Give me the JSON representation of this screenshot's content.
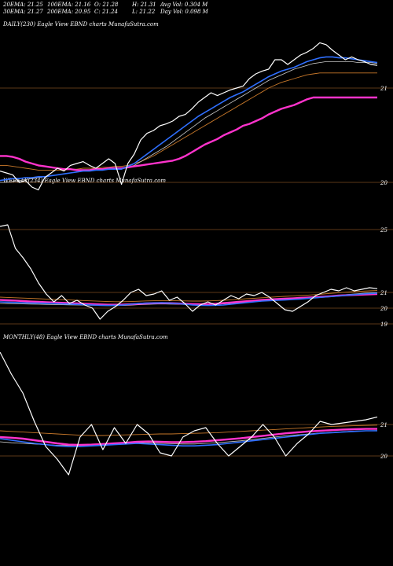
{
  "header": {
    "row1": [
      "20EMA: 21.25",
      "100EMA: 21.16",
      "O: 21.28",
      "H: 21.31",
      "Avg Vol: 0.304  M"
    ],
    "row2": [
      "30EMA: 21.27",
      "200EMA: 20.95",
      "C: 21.24",
      "L: 21.22",
      "Day Vol: 0.098  M"
    ]
  },
  "panels": {
    "daily": {
      "label": "DAILY(230) Eagle   View  EBND charts MunafaSutra.com"
    },
    "weekly": {
      "label": "WEEKLY(234) Eagle   View  EBND charts MunafaSutra.com"
    },
    "monthly": {
      "label": "MONTHLY(48) Eagle   View  EBND charts MunafaSutra.com"
    }
  },
  "colors": {
    "background": "#000000",
    "price": "#ffffff",
    "ema_blue": "#2f6fff",
    "ema_pink": "#ff33cc",
    "ema_orange": "#c8782a",
    "ema_gray": "#cccccc",
    "grid": "#b87333"
  },
  "chart_data": [
    {
      "type": "line",
      "title": "DAILY(230) Eagle   View  EBND charts MunafaSutra.com",
      "ylim": [
        19.6,
        21.6
      ],
      "yticks": [
        21,
        20
      ],
      "series": [
        {
          "role": "price",
          "values": [
            20.12,
            20.1,
            20.08,
            20.0,
            20.02,
            19.95,
            19.92,
            20.05,
            20.1,
            20.15,
            20.12,
            20.18,
            20.2,
            20.22,
            20.18,
            20.15,
            20.2,
            20.25,
            20.2,
            19.98,
            20.2,
            20.3,
            20.45,
            20.52,
            20.55,
            20.6,
            20.62,
            20.65,
            20.7,
            20.72,
            20.78,
            20.85,
            20.9,
            20.95,
            20.92,
            20.95,
            20.98,
            21.0,
            21.02,
            21.1,
            21.15,
            21.18,
            21.2,
            21.3,
            21.3,
            21.25,
            21.3,
            21.35,
            21.38,
            21.42,
            21.48,
            21.46,
            21.4,
            21.35,
            21.3,
            21.33,
            21.3,
            21.28,
            21.25,
            21.24
          ]
        },
        {
          "role": "ema_blue",
          "values": [
            20.02,
            20.03,
            20.04,
            20.04,
            20.05,
            20.05,
            20.06,
            20.06,
            20.07,
            20.08,
            20.09,
            20.1,
            20.11,
            20.12,
            20.12,
            20.13,
            20.13,
            20.14,
            20.14,
            20.14,
            20.17,
            20.2,
            20.25,
            20.3,
            20.35,
            20.4,
            20.45,
            20.5,
            20.55,
            20.6,
            20.65,
            20.7,
            20.74,
            20.78,
            20.82,
            20.86,
            20.9,
            20.93,
            20.96,
            21.0,
            21.04,
            21.08,
            21.12,
            21.15,
            21.18,
            21.2,
            21.22,
            21.25,
            21.28,
            21.3,
            21.32,
            21.33,
            21.33,
            21.32,
            21.32,
            21.31,
            21.3,
            21.29,
            21.28,
            21.27
          ]
        },
        {
          "role": "ema_pink",
          "values": [
            20.28,
            20.28,
            20.27,
            20.25,
            20.22,
            20.2,
            20.18,
            20.17,
            20.16,
            20.15,
            20.14,
            20.14,
            20.13,
            20.13,
            20.13,
            20.14,
            20.14,
            20.15,
            20.15,
            20.15,
            20.16,
            20.17,
            20.18,
            20.19,
            20.2,
            20.21,
            20.22,
            20.23,
            20.25,
            20.28,
            20.32,
            20.36,
            20.4,
            20.43,
            20.46,
            20.5,
            20.53,
            20.56,
            20.6,
            20.62,
            20.65,
            20.68,
            20.72,
            20.75,
            20.78,
            20.8,
            20.82,
            20.85,
            20.88,
            20.9,
            20.9,
            20.9,
            20.9,
            20.9,
            20.9,
            20.9,
            20.9,
            20.9,
            20.9,
            20.9
          ]
        },
        {
          "role": "ema_orange",
          "values": [
            20.18,
            20.18,
            20.17,
            20.16,
            20.15,
            20.14,
            20.13,
            20.13,
            20.13,
            20.13,
            20.13,
            20.14,
            20.14,
            20.15,
            20.15,
            20.15,
            20.16,
            20.16,
            20.17,
            20.17,
            20.18,
            20.2,
            20.22,
            20.25,
            20.28,
            20.32,
            20.36,
            20.4,
            20.44,
            20.48,
            20.52,
            20.56,
            20.6,
            20.64,
            20.68,
            20.72,
            20.76,
            20.8,
            20.84,
            20.88,
            20.92,
            20.96,
            21.0,
            21.03,
            21.06,
            21.08,
            21.1,
            21.12,
            21.14,
            21.15,
            21.16,
            21.16,
            21.16,
            21.16,
            21.16,
            21.16,
            21.16,
            21.16,
            21.16,
            21.16
          ]
        },
        {
          "role": "ema_gray",
          "values": [
            20.0,
            20.0,
            20.01,
            20.02,
            20.03,
            20.04,
            20.05,
            20.06,
            20.07,
            20.08,
            20.09,
            20.1,
            20.11,
            20.12,
            20.12,
            20.13,
            20.13,
            20.14,
            20.14,
            20.14,
            20.16,
            20.18,
            20.22,
            20.26,
            20.3,
            20.34,
            20.38,
            20.43,
            20.48,
            20.53,
            20.58,
            20.63,
            20.68,
            20.72,
            20.76,
            20.8,
            20.84,
            20.88,
            20.92,
            20.96,
            21.0,
            21.04,
            21.08,
            21.11,
            21.14,
            21.17,
            21.2,
            21.22,
            21.24,
            21.26,
            21.27,
            21.28,
            21.28,
            21.28,
            21.28,
            21.28,
            21.27,
            21.27,
            21.27,
            21.26
          ]
        }
      ]
    },
    {
      "type": "line",
      "title": "WEEKLY(234) Eagle   View  EBND charts MunafaSutra.com",
      "ylim": [
        18.6,
        25.6
      ],
      "yticks": [
        25,
        21,
        20,
        19
      ],
      "series": [
        {
          "role": "price",
          "values": [
            25.2,
            25.3,
            23.8,
            23.2,
            22.5,
            21.6,
            20.9,
            20.4,
            20.8,
            20.3,
            20.5,
            20.2,
            20.0,
            19.3,
            19.8,
            20.1,
            20.5,
            21.0,
            21.2,
            20.8,
            20.9,
            21.1,
            20.5,
            20.7,
            20.3,
            19.8,
            20.2,
            20.4,
            20.2,
            20.5,
            20.8,
            20.6,
            20.9,
            20.8,
            21.0,
            20.7,
            20.3,
            19.9,
            19.8,
            20.1,
            20.4,
            20.8,
            21.0,
            21.2,
            21.1,
            21.3,
            21.1,
            21.2,
            21.3,
            21.24
          ]
        },
        {
          "role": "ema_blue",
          "values": [
            20.4,
            20.38,
            20.36,
            20.34,
            20.33,
            20.32,
            20.31,
            20.3,
            20.28,
            20.26,
            20.24,
            20.22,
            20.2,
            20.18,
            20.17,
            20.18,
            20.2,
            20.25,
            20.3,
            20.32,
            20.33,
            20.34,
            20.32,
            20.3,
            20.25,
            20.2,
            20.18,
            20.17,
            20.18,
            20.2,
            20.25,
            20.3,
            20.35,
            20.4,
            20.45,
            20.48,
            20.5,
            20.52,
            20.55,
            20.58,
            20.62,
            20.66,
            20.7,
            20.74,
            20.78,
            20.82,
            20.86,
            20.9,
            20.93,
            20.95
          ]
        },
        {
          "role": "ema_pink",
          "values": [
            20.52,
            20.5,
            20.48,
            20.45,
            20.42,
            20.4,
            20.38,
            20.36,
            20.34,
            20.32,
            20.3,
            20.28,
            20.26,
            20.24,
            20.22,
            20.22,
            20.23,
            20.25,
            20.28,
            20.3,
            20.32,
            20.33,
            20.32,
            20.3,
            20.28,
            20.26,
            20.25,
            20.26,
            20.28,
            20.32,
            20.36,
            20.4,
            20.44,
            20.48,
            20.52,
            20.55,
            20.58,
            20.6,
            20.62,
            20.65,
            20.68,
            20.7,
            20.73,
            20.76,
            20.8,
            20.82,
            20.84,
            20.86,
            20.88,
            20.9
          ]
        },
        {
          "role": "ema_orange",
          "values": [
            20.7,
            20.68,
            20.66,
            20.64,
            20.62,
            20.6,
            20.58,
            20.56,
            20.54,
            20.52,
            20.5,
            20.48,
            20.46,
            20.44,
            20.42,
            20.41,
            20.41,
            20.42,
            20.44,
            20.46,
            20.47,
            20.48,
            20.48,
            20.47,
            20.46,
            20.45,
            20.45,
            20.46,
            20.48,
            20.5,
            20.53,
            20.56,
            20.6,
            20.63,
            20.66,
            20.69,
            20.72,
            20.75,
            20.78,
            20.8,
            20.83,
            20.86,
            20.9,
            20.94,
            20.98,
            21.02,
            21.05,
            21.08,
            21.1,
            21.12
          ]
        },
        {
          "role": "ema_gray",
          "values": [
            20.3,
            20.29,
            20.28,
            20.27,
            20.26,
            20.25,
            20.24,
            20.23,
            20.22,
            20.21,
            20.2,
            20.19,
            20.18,
            20.17,
            20.16,
            20.16,
            20.17,
            20.19,
            20.22,
            20.24,
            20.26,
            20.27,
            20.26,
            20.25,
            20.23,
            20.22,
            20.21,
            20.22,
            20.24,
            20.27,
            20.3,
            20.34,
            20.38,
            20.42,
            20.46,
            20.5,
            20.53,
            20.56,
            20.6,
            20.63,
            20.67,
            20.7,
            20.74,
            20.78,
            20.82,
            20.86,
            20.9,
            20.94,
            20.98,
            21.0
          ]
        }
      ]
    },
    {
      "type": "line",
      "title": "MONTHLY(48) Eagle   View  EBND charts MunafaSutra.com",
      "ylim": [
        19.0,
        23.5
      ],
      "yticks": [
        21,
        20
      ],
      "series": [
        {
          "role": "price",
          "values": [
            23.3,
            22.6,
            22.0,
            21.1,
            20.3,
            19.9,
            19.4,
            20.6,
            21.0,
            20.2,
            20.9,
            20.4,
            21.0,
            20.7,
            20.1,
            20.0,
            20.6,
            20.8,
            20.9,
            20.4,
            20.0,
            20.3,
            20.6,
            21.0,
            20.6,
            20.0,
            20.4,
            20.7,
            21.1,
            21.0,
            21.05,
            21.1,
            21.15,
            21.24
          ]
        },
        {
          "role": "ema_blue",
          "values": [
            20.55,
            20.5,
            20.45,
            20.4,
            20.36,
            20.32,
            20.3,
            20.3,
            20.32,
            20.34,
            20.36,
            20.38,
            20.4,
            20.38,
            20.36,
            20.34,
            20.32,
            20.32,
            20.34,
            20.36,
            20.4,
            20.44,
            20.48,
            20.52,
            20.56,
            20.6,
            20.64,
            20.68,
            20.72,
            20.74,
            20.76,
            20.78,
            20.8,
            20.8
          ]
        },
        {
          "role": "ema_pink",
          "values": [
            20.6,
            20.58,
            20.55,
            20.5,
            20.45,
            20.4,
            20.36,
            20.35,
            20.36,
            20.38,
            20.4,
            20.42,
            20.45,
            20.46,
            20.45,
            20.44,
            20.44,
            20.45,
            20.47,
            20.5,
            20.53,
            20.56,
            20.6,
            20.64,
            20.68,
            20.72,
            20.75,
            20.78,
            20.8,
            20.82,
            20.84,
            20.85,
            20.86,
            20.86
          ]
        },
        {
          "role": "ema_orange",
          "values": [
            20.8,
            20.78,
            20.76,
            20.74,
            20.72,
            20.7,
            20.68,
            20.66,
            20.65,
            20.65,
            20.66,
            20.67,
            20.68,
            20.69,
            20.7,
            20.7,
            20.71,
            20.72,
            20.73,
            20.74,
            20.76,
            20.78,
            20.8,
            20.82,
            20.84,
            20.86,
            20.88,
            20.9,
            20.92,
            20.94,
            20.95,
            20.96,
            20.97,
            20.98
          ]
        },
        {
          "role": "ema_gray",
          "values": [
            20.45,
            20.42,
            20.4,
            20.38,
            20.36,
            20.34,
            20.33,
            20.33,
            20.34,
            20.36,
            20.38,
            20.4,
            20.42,
            20.41,
            20.4,
            20.39,
            20.38,
            20.38,
            20.4,
            20.42,
            20.45,
            20.48,
            20.52,
            20.56,
            20.6,
            20.64,
            20.67,
            20.7,
            20.73,
            20.75,
            20.77,
            20.79,
            20.8,
            20.81
          ]
        }
      ]
    }
  ]
}
